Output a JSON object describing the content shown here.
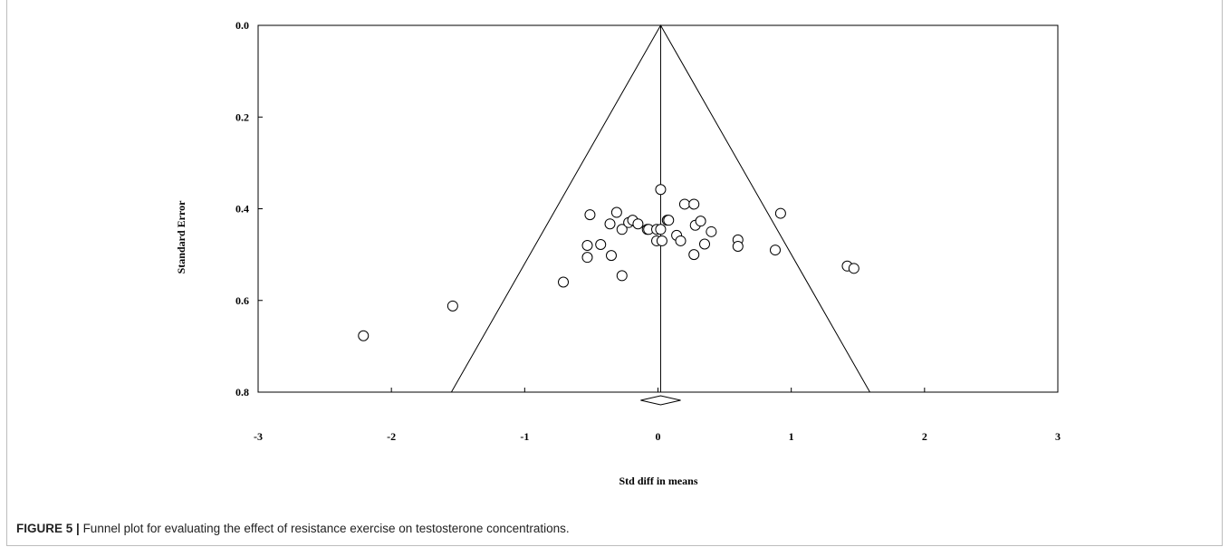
{
  "caption": {
    "label": "FIGURE 5 |",
    "text": "Funnel plot for evaluating the effect of resistance exercise on testosterone concentrations."
  },
  "chart_data": {
    "type": "scatter",
    "xlabel": "Std diff in means",
    "ylabel": "Standard Error",
    "xlim": [
      -3,
      3
    ],
    "ylim": [
      0.0,
      0.8
    ],
    "y_inverted": true,
    "x_ticks": [
      "-3",
      "-2",
      "-1",
      "0",
      "1",
      "2",
      "3"
    ],
    "y_ticks": [
      "0.0",
      "0.2",
      "0.4",
      "0.6",
      "0.8"
    ],
    "pooled_effect": 0.02,
    "pooled_ci": [
      -0.13,
      0.17
    ],
    "funnel": {
      "apex": [
        0.02,
        0.0
      ],
      "left_base": [
        -1.55,
        0.8
      ],
      "right_base": [
        1.59,
        0.8
      ]
    },
    "points": [
      {
        "x": -2.21,
        "y": 0.677
      },
      {
        "x": -1.54,
        "y": 0.612
      },
      {
        "x": -0.71,
        "y": 0.56
      },
      {
        "x": -0.53,
        "y": 0.506
      },
      {
        "x": -0.53,
        "y": 0.48
      },
      {
        "x": -0.51,
        "y": 0.413
      },
      {
        "x": -0.43,
        "y": 0.478
      },
      {
        "x": -0.36,
        "y": 0.433
      },
      {
        "x": -0.35,
        "y": 0.502
      },
      {
        "x": -0.31,
        "y": 0.408
      },
      {
        "x": -0.27,
        "y": 0.445
      },
      {
        "x": -0.27,
        "y": 0.546
      },
      {
        "x": -0.22,
        "y": 0.43
      },
      {
        "x": -0.19,
        "y": 0.425
      },
      {
        "x": -0.15,
        "y": 0.433
      },
      {
        "x": -0.08,
        "y": 0.445
      },
      {
        "x": -0.07,
        "y": 0.445
      },
      {
        "x": -0.01,
        "y": 0.445
      },
      {
        "x": -0.01,
        "y": 0.47
      },
      {
        "x": 0.02,
        "y": 0.445
      },
      {
        "x": 0.02,
        "y": 0.358
      },
      {
        "x": 0.03,
        "y": 0.47
      },
      {
        "x": 0.07,
        "y": 0.425
      },
      {
        "x": 0.08,
        "y": 0.425
      },
      {
        "x": 0.14,
        "y": 0.458
      },
      {
        "x": 0.17,
        "y": 0.47
      },
      {
        "x": 0.2,
        "y": 0.39
      },
      {
        "x": 0.27,
        "y": 0.39
      },
      {
        "x": 0.27,
        "y": 0.5
      },
      {
        "x": 0.28,
        "y": 0.436
      },
      {
        "x": 0.32,
        "y": 0.427
      },
      {
        "x": 0.35,
        "y": 0.477
      },
      {
        "x": 0.4,
        "y": 0.45
      },
      {
        "x": 0.6,
        "y": 0.468
      },
      {
        "x": 0.6,
        "y": 0.482
      },
      {
        "x": 0.88,
        "y": 0.49
      },
      {
        "x": 0.92,
        "y": 0.41
      },
      {
        "x": 1.42,
        "y": 0.525
      },
      {
        "x": 1.47,
        "y": 0.53
      }
    ]
  }
}
